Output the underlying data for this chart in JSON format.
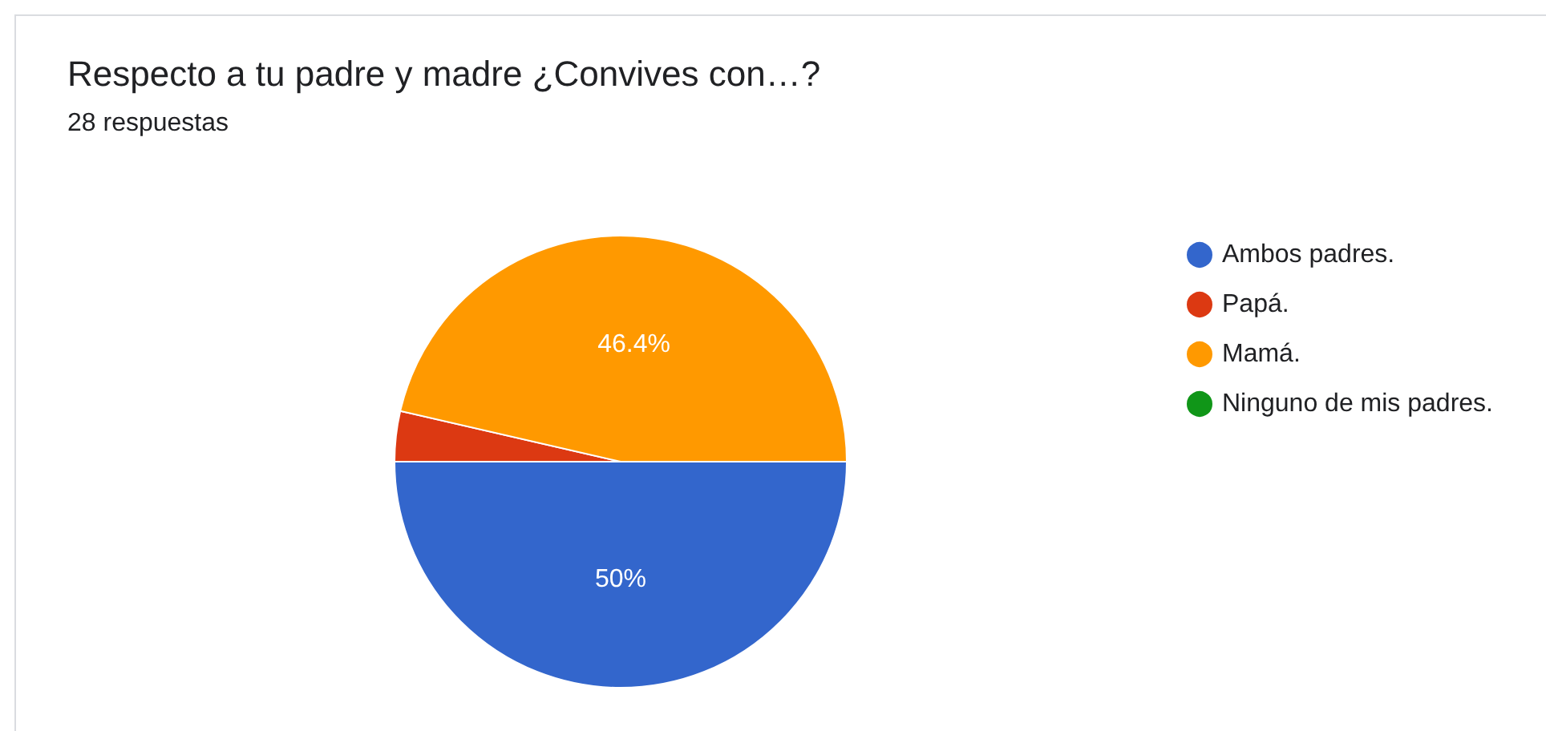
{
  "chart_data": {
    "type": "pie",
    "title": "Respecto a tu padre y madre ¿Convives con…?",
    "subtitle": "28 respuestas",
    "categories": [
      "Ambos padres.",
      "Papá.",
      "Mamá.",
      "Ninguno de mis padres."
    ],
    "values": [
      50,
      3.6,
      46.4,
      0
    ],
    "colors": [
      "#3366cc",
      "#dc3912",
      "#ff9900",
      "#109618"
    ],
    "value_labels": [
      "50%",
      null,
      "46.4%",
      null
    ],
    "legend": "right"
  }
}
